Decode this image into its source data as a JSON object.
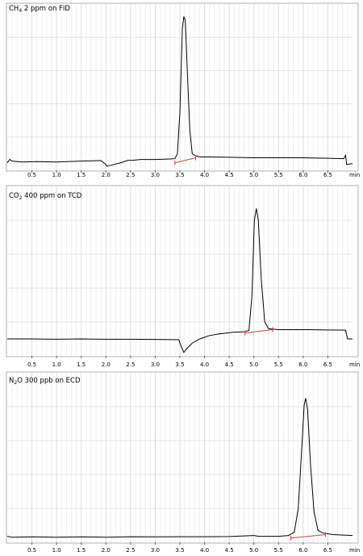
{
  "chart_data": [
    {
      "type": "line",
      "title": {
        "pre": "CH",
        "sub": "4",
        "post": " 2 ppm on FID"
      },
      "x_unit": "min",
      "xlim": [
        0,
        7.0
      ],
      "ylim": [
        0,
        1
      ],
      "x_ticks": [
        0.5,
        1.0,
        1.5,
        2.0,
        2.5,
        3.0,
        3.5,
        4.0,
        4.5,
        5.0,
        5.5,
        6.0,
        6.5
      ],
      "x_tick_labels": [
        "0.5",
        "1.0",
        "1.5",
        "2.0",
        "2.5",
        "3.0",
        "3.5",
        "4.0",
        "4.5",
        "5.0",
        "5.5",
        "6.0",
        "6.5"
      ],
      "grid": true,
      "trace": [
        [
          0,
          0.045
        ],
        [
          0.05,
          0.065
        ],
        [
          0.1,
          0.055
        ],
        [
          0.3,
          0.05
        ],
        [
          0.6,
          0.052
        ],
        [
          1.0,
          0.05
        ],
        [
          1.5,
          0.055
        ],
        [
          1.9,
          0.058
        ],
        [
          1.98,
          0.04
        ],
        [
          2.02,
          0.025
        ],
        [
          2.1,
          0.03
        ],
        [
          2.3,
          0.045
        ],
        [
          2.45,
          0.06
        ],
        [
          2.55,
          0.06
        ],
        [
          2.7,
          0.065
        ],
        [
          3.0,
          0.065
        ],
        [
          3.3,
          0.068
        ],
        [
          3.4,
          0.07
        ],
        [
          3.45,
          0.1
        ],
        [
          3.5,
          0.35
        ],
        [
          3.55,
          0.85
        ],
        [
          3.58,
          0.925
        ],
        [
          3.61,
          0.9
        ],
        [
          3.65,
          0.6
        ],
        [
          3.7,
          0.25
        ],
        [
          3.75,
          0.1
        ],
        [
          3.8,
          0.09
        ],
        [
          3.9,
          0.08
        ],
        [
          4.1,
          0.08
        ],
        [
          4.5,
          0.078
        ],
        [
          5.0,
          0.075
        ],
        [
          5.5,
          0.075
        ],
        [
          6.0,
          0.075
        ],
        [
          6.5,
          0.072
        ],
        [
          6.82,
          0.07
        ],
        [
          6.86,
          0.09
        ],
        [
          6.88,
          0.035
        ],
        [
          7.0,
          0.04
        ]
      ],
      "baseline_marker": [
        [
          3.4,
          0.045
        ],
        [
          3.82,
          0.075
        ]
      ]
    },
    {
      "type": "line",
      "title": {
        "pre": "CO",
        "sub": "2",
        "post": " 400 ppm on TCD"
      },
      "x_unit": "min",
      "xlim": [
        0,
        7.0
      ],
      "ylim": [
        0,
        1
      ],
      "x_ticks": [
        0.5,
        1.0,
        1.5,
        2.0,
        2.5,
        3.0,
        3.5,
        4.0,
        4.5,
        5.0,
        5.5,
        6.0,
        6.5
      ],
      "x_tick_labels": [
        "0.5",
        "1.0",
        "1.5",
        "2.0",
        "2.5",
        "3.0",
        "3.5",
        "4.0",
        "4.5",
        "5.0",
        "5.5",
        "6.0",
        "6.5"
      ],
      "grid": true,
      "trace": [
        [
          0,
          0.1
        ],
        [
          0.5,
          0.1
        ],
        [
          1.0,
          0.098
        ],
        [
          1.5,
          0.1
        ],
        [
          2.0,
          0.098
        ],
        [
          2.5,
          0.098
        ],
        [
          3.0,
          0.097
        ],
        [
          3.48,
          0.095
        ],
        [
          3.52,
          0.06
        ],
        [
          3.58,
          0.02
        ],
        [
          3.63,
          0.04
        ],
        [
          3.75,
          0.075
        ],
        [
          3.9,
          0.1
        ],
        [
          4.1,
          0.12
        ],
        [
          4.3,
          0.13
        ],
        [
          4.6,
          0.14
        ],
        [
          4.8,
          0.142
        ],
        [
          4.9,
          0.15
        ],
        [
          4.96,
          0.35
        ],
        [
          5.01,
          0.8
        ],
        [
          5.05,
          0.87
        ],
        [
          5.09,
          0.8
        ],
        [
          5.15,
          0.45
        ],
        [
          5.22,
          0.2
        ],
        [
          5.3,
          0.16
        ],
        [
          5.5,
          0.155
        ],
        [
          6.0,
          0.155
        ],
        [
          6.5,
          0.153
        ],
        [
          6.86,
          0.152
        ],
        [
          6.9,
          0.1
        ],
        [
          7.0,
          0.1
        ]
      ],
      "baseline_marker": [
        [
          4.82,
          0.135
        ],
        [
          5.38,
          0.155
        ]
      ]
    },
    {
      "type": "line",
      "title": {
        "pre": "N",
        "sub": "2",
        "post": "O 300 ppb on ECD"
      },
      "x_unit": "min",
      "xlim": [
        0,
        7.0
      ],
      "ylim": [
        0,
        1
      ],
      "x_ticks": [
        0.5,
        1.0,
        1.5,
        2.0,
        2.5,
        3.0,
        3.5,
        4.0,
        4.5,
        5.0,
        5.5,
        6.0,
        6.5
      ],
      "x_tick_labels": [
        "0.5",
        "1.0",
        "1.5",
        "2.0",
        "2.5",
        "3.0",
        "3.5",
        "4.0",
        "4.5",
        "5.0",
        "5.5",
        "6.0",
        "6.5"
      ],
      "grid": true,
      "trace": [
        [
          0,
          0.035
        ],
        [
          0.1,
          0.03
        ],
        [
          0.5,
          0.032
        ],
        [
          1.0,
          0.03
        ],
        [
          1.5,
          0.032
        ],
        [
          2.0,
          0.03
        ],
        [
          2.5,
          0.033
        ],
        [
          3.0,
          0.032
        ],
        [
          3.5,
          0.033
        ],
        [
          4.0,
          0.033
        ],
        [
          4.5,
          0.034
        ],
        [
          5.0,
          0.04
        ],
        [
          5.1,
          0.035
        ],
        [
          5.5,
          0.035
        ],
        [
          5.7,
          0.04
        ],
        [
          5.82,
          0.06
        ],
        [
          5.9,
          0.2
        ],
        [
          5.97,
          0.55
        ],
        [
          6.02,
          0.81
        ],
        [
          6.05,
          0.85
        ],
        [
          6.09,
          0.78
        ],
        [
          6.15,
          0.45
        ],
        [
          6.22,
          0.18
        ],
        [
          6.3,
          0.07
        ],
        [
          6.4,
          0.055
        ],
        [
          6.6,
          0.045
        ],
        [
          7.0,
          0.04
        ]
      ],
      "baseline_marker": [
        [
          5.75,
          0.025
        ],
        [
          6.45,
          0.045
        ]
      ]
    }
  ]
}
